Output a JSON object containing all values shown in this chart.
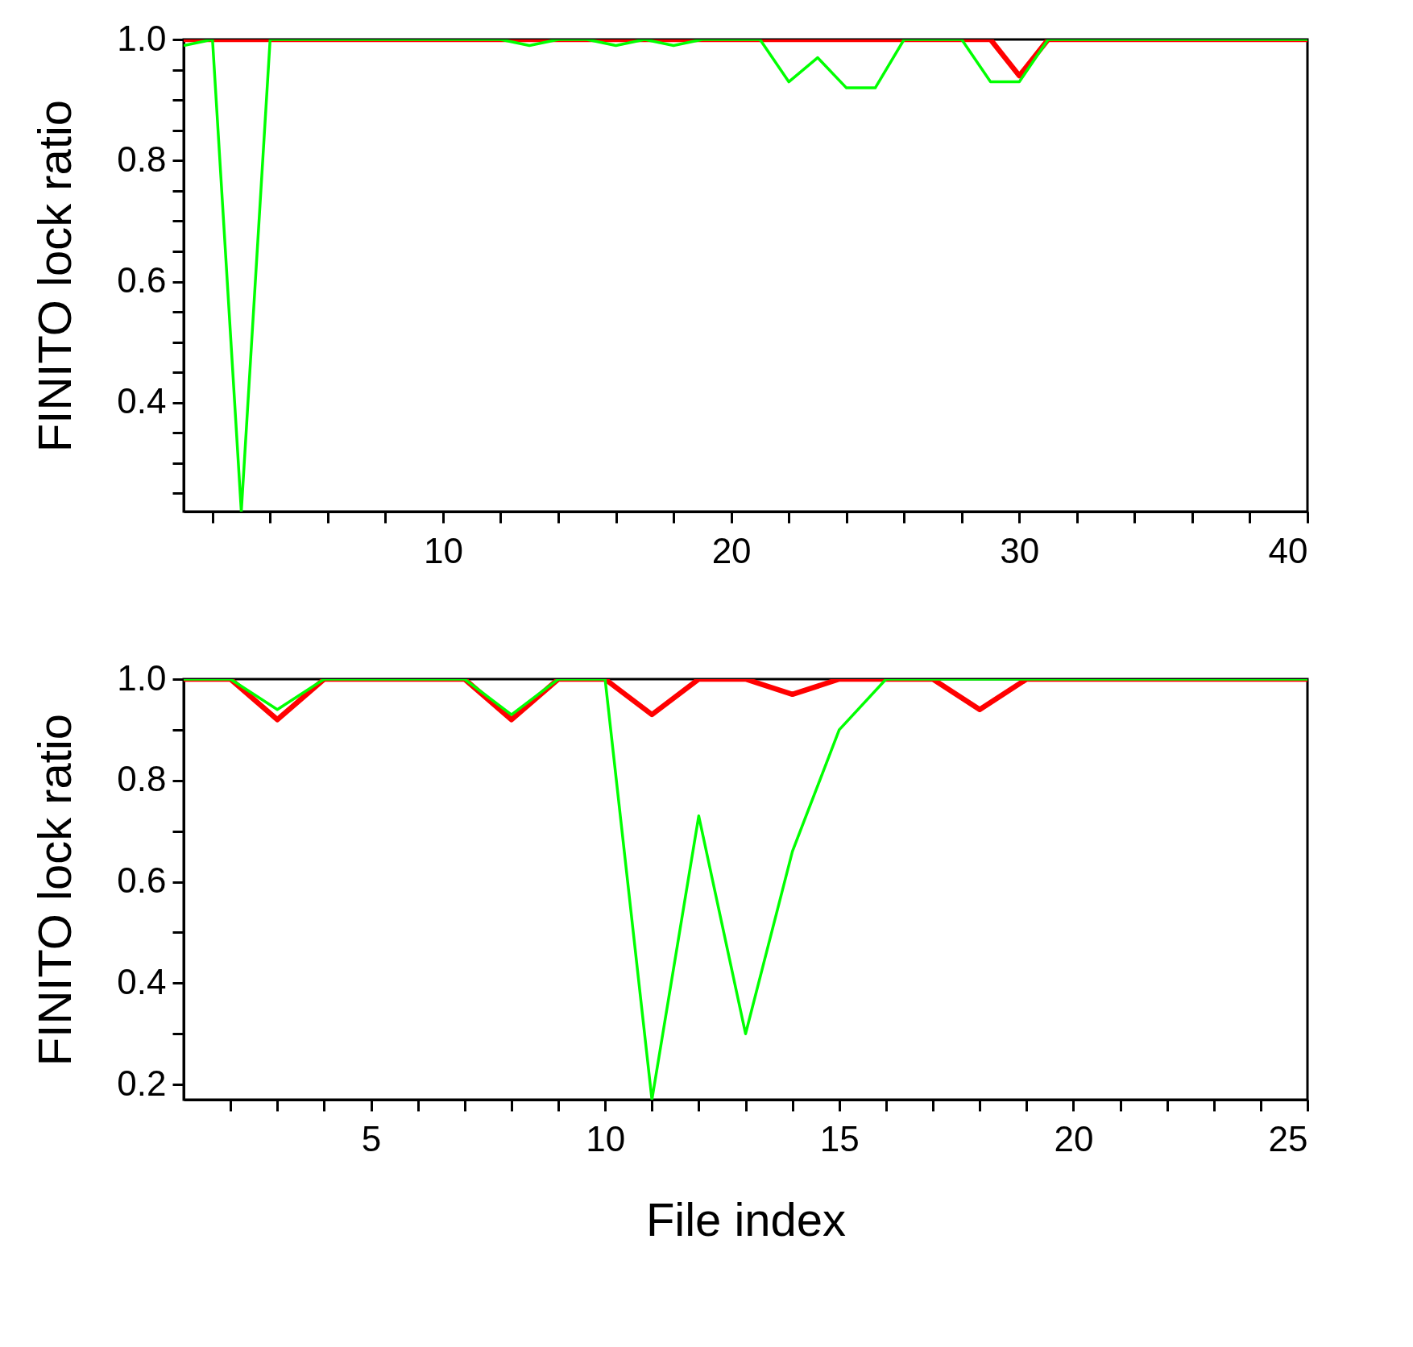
{
  "chart_data": [
    {
      "type": "line",
      "ylabel": "FINITO lock ratio",
      "x": [
        1,
        2,
        3,
        4,
        5,
        6,
        7,
        8,
        9,
        10,
        11,
        12,
        13,
        14,
        15,
        16,
        17,
        18,
        19,
        20,
        21,
        22,
        23,
        24,
        25,
        26,
        27,
        28,
        29,
        30,
        31,
        32,
        33,
        34,
        35,
        36,
        37,
        38,
        39,
        40
      ],
      "series": [
        {
          "color": "#ff0000",
          "values": [
            1,
            1,
            1,
            1,
            1,
            1,
            1,
            1,
            1,
            1,
            1,
            1,
            1,
            1,
            1,
            1,
            1,
            1,
            1,
            1,
            1,
            1,
            1,
            1,
            1,
            1,
            1,
            1,
            1,
            0.94,
            1,
            1,
            1,
            1,
            1,
            1,
            1,
            1,
            1,
            1
          ]
        },
        {
          "color": "#00ff00",
          "values": [
            0.99,
            1,
            0.22,
            1,
            1,
            1,
            1,
            1,
            1,
            1,
            1,
            1,
            0.99,
            1,
            1,
            0.99,
            1,
            0.99,
            1,
            1,
            1,
            0.93,
            0.97,
            0.92,
            0.92,
            1,
            1,
            1,
            0.93,
            0.93,
            1,
            1,
            1,
            1,
            1,
            1,
            1,
            1,
            1,
            1
          ]
        }
      ],
      "xlim": [
        1,
        40
      ],
      "ylim": [
        0.22,
        1.0
      ],
      "xticks": [
        {
          "value": 2,
          "label": null
        },
        {
          "value": 4,
          "label": null
        },
        {
          "value": 6,
          "label": null
        },
        {
          "value": 8,
          "label": null
        },
        10,
        {
          "value": 12,
          "label": null
        },
        {
          "value": 14,
          "label": null
        },
        {
          "value": 16,
          "label": null
        },
        {
          "value": 18,
          "label": null
        },
        20,
        {
          "value": 22,
          "label": null
        },
        {
          "value": 24,
          "label": null
        },
        {
          "value": 26,
          "label": null
        },
        {
          "value": 28,
          "label": null
        },
        30,
        {
          "value": 32,
          "label": null
        },
        {
          "value": 34,
          "label": null
        },
        {
          "value": 36,
          "label": null
        },
        {
          "value": 38,
          "label": null
        },
        40
      ],
      "yticks": [
        {
          "value": 0.25,
          "label": null
        },
        {
          "value": 0.3,
          "label": null
        },
        {
          "value": 0.35,
          "label": null
        },
        {
          "value": 0.4,
          "label": "0.4"
        },
        {
          "value": 0.45,
          "label": null
        },
        {
          "value": 0.5,
          "label": null
        },
        {
          "value": 0.55,
          "label": null
        },
        {
          "value": 0.6,
          "label": "0.6"
        },
        {
          "value": 0.65,
          "label": null
        },
        {
          "value": 0.7,
          "label": null
        },
        {
          "value": 0.75,
          "label": null
        },
        {
          "value": 0.8,
          "label": "0.8"
        },
        {
          "value": 0.85,
          "label": null
        },
        {
          "value": 0.9,
          "label": null
        },
        {
          "value": 0.95,
          "label": null
        },
        {
          "value": 1.0,
          "label": "1.0"
        }
      ],
      "grid": false
    },
    {
      "type": "line",
      "ylabel": "FINITO lock ratio",
      "xlabel": "File index",
      "x": [
        1,
        2,
        3,
        4,
        5,
        6,
        7,
        8,
        9,
        10,
        11,
        12,
        13,
        14,
        15,
        16,
        17,
        18,
        19,
        20,
        21,
        22,
        23,
        24,
        25
      ],
      "series": [
        {
          "color": "#ff0000",
          "values": [
            1,
            1,
            0.92,
            1,
            1,
            1,
            1,
            0.92,
            1,
            1,
            0.93,
            1,
            1,
            0.97,
            1,
            1,
            1,
            0.94,
            1,
            1,
            1,
            1,
            1,
            1,
            1
          ]
        },
        {
          "color": "#00ff00",
          "values": [
            1,
            1,
            0.94,
            1,
            1,
            1,
            1,
            0.93,
            1,
            1,
            0.17,
            0.73,
            0.3,
            0.66,
            0.9,
            1,
            1,
            1,
            1,
            1,
            1,
            1,
            1,
            1,
            1
          ]
        }
      ],
      "xlim": [
        1,
        25
      ],
      "ylim": [
        0.17,
        1.0
      ],
      "xticks": [
        {
          "value": 2,
          "label": null
        },
        {
          "value": 3,
          "label": null
        },
        {
          "value": 4,
          "label": null
        },
        5,
        {
          "value": 6,
          "label": null
        },
        {
          "value": 7,
          "label": null
        },
        {
          "value": 8,
          "label": null
        },
        {
          "value": 9,
          "label": null
        },
        10,
        {
          "value": 11,
          "label": null
        },
        {
          "value": 12,
          "label": null
        },
        {
          "value": 13,
          "label": null
        },
        {
          "value": 14,
          "label": null
        },
        15,
        {
          "value": 16,
          "label": null
        },
        {
          "value": 17,
          "label": null
        },
        {
          "value": 18,
          "label": null
        },
        {
          "value": 19,
          "label": null
        },
        20,
        {
          "value": 21,
          "label": null
        },
        {
          "value": 22,
          "label": null
        },
        {
          "value": 23,
          "label": null
        },
        {
          "value": 24,
          "label": null
        },
        25
      ],
      "yticks": [
        {
          "value": 0.2,
          "label": "0.2"
        },
        {
          "value": 0.3,
          "label": null
        },
        {
          "value": 0.4,
          "label": "0.4"
        },
        {
          "value": 0.5,
          "label": null
        },
        {
          "value": 0.6,
          "label": "0.6"
        },
        {
          "value": 0.7,
          "label": null
        },
        {
          "value": 0.8,
          "label": "0.8"
        },
        {
          "value": 0.9,
          "label": null
        },
        {
          "value": 1.0,
          "label": "1.0"
        }
      ],
      "grid": false
    }
  ]
}
